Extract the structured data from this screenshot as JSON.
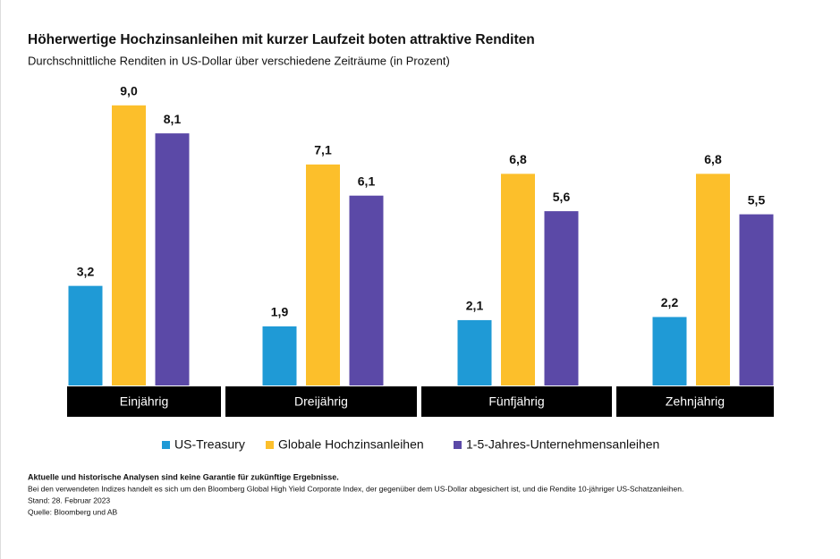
{
  "chart_data": {
    "type": "bar",
    "title": "Höherwertige Hochzinsanleihen mit kurzer Laufzeit boten attraktive Renditen",
    "subtitle": "Durchschnittliche Renditen in US-Dollar über verschiedene Zeiträume (in Prozent)",
    "categories": [
      "Einjährig",
      "Dreijährig",
      "Fünfjährig",
      "Zehnjährig"
    ],
    "series": [
      {
        "name": "US-Treasury",
        "color": "#1f9ad6",
        "values": [
          3.2,
          1.9,
          2.1,
          2.2
        ],
        "value_labels": [
          "3,2",
          "1,9",
          "2,1",
          "2,2"
        ]
      },
      {
        "name": "Globale Hochzinsanleihen",
        "color": "#fcbf2b",
        "values": [
          9.0,
          7.1,
          6.8,
          6.8
        ],
        "value_labels": [
          "9,0",
          "7,1",
          "6,8",
          "6,8"
        ]
      },
      {
        "name": "1-5-Jahres-Unternehmensanleihen",
        "color": "#5b49a7",
        "values": [
          8.1,
          6.1,
          5.6,
          5.5
        ],
        "value_labels": [
          "8,1",
          "6,1",
          "5,6",
          "5,5"
        ]
      }
    ],
    "footnotes": [
      "Aktuelle und historische Analysen sind keine Garantie für zukünftige Ergebnisse.",
      "Bei den verwendeten Indizes handelt es sich um den Bloomberg Global High Yield Corporate Index, der gegenüber dem US-Dollar abgesichert ist, und die Rendite 10-jähriger US-Schatzanleihen.",
      "Stand: 28. Februar 2023",
      "Quelle: Bloomberg und AB"
    ]
  }
}
